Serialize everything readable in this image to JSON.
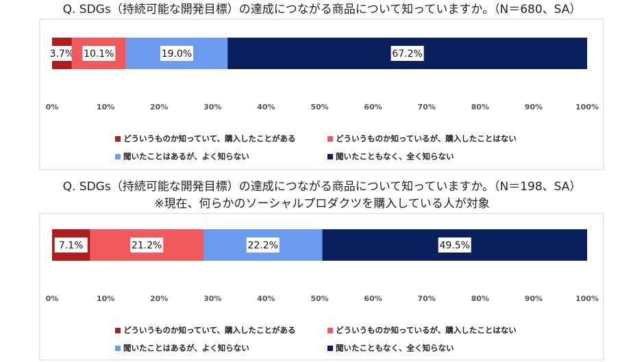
{
  "chart_data": [
    {
      "type": "bar",
      "orientation": "horizontal",
      "stacked": true,
      "title": "Q. SDGs（持続可能な開発目標）の達成につながる商品について知っていますか。（N＝680、SA）",
      "series": [
        {
          "name": "どういうものか知っていて、購入したことがある",
          "color": "#b01c1c",
          "values": [
            3.7
          ],
          "value_labels": [
            "3.7%"
          ]
        },
        {
          "name": "どういうものか知っているが、購入したことはない",
          "color": "#f0585a",
          "values": [
            10.1
          ],
          "value_labels": [
            "10.1%"
          ]
        },
        {
          "name": "聞いたことはあるが、よく知らない",
          "color": "#6a9bef",
          "values": [
            19.0
          ],
          "value_labels": [
            "19.0%"
          ]
        },
        {
          "name": "聞いたこともなく、全く知らない",
          "color": "#0b1f5e",
          "values": [
            67.2
          ],
          "value_labels": [
            "67.2%"
          ]
        }
      ],
      "xlim": [
        0,
        100
      ],
      "xticks": [
        {
          "value": 0,
          "label": "0%"
        },
        {
          "value": 10,
          "label": "10%"
        },
        {
          "value": 20,
          "label": "20%"
        },
        {
          "value": 30,
          "label": "30%"
        },
        {
          "value": 40,
          "label": "40%"
        },
        {
          "value": 50,
          "label": "50%"
        },
        {
          "value": 60,
          "label": "60%"
        },
        {
          "value": 70,
          "label": "70%"
        },
        {
          "value": 80,
          "label": "80%"
        },
        {
          "value": 90,
          "label": "90%"
        },
        {
          "value": 100,
          "label": "100%"
        }
      ],
      "grid": false,
      "legend": "bottom"
    },
    {
      "type": "bar",
      "orientation": "horizontal",
      "stacked": true,
      "title": "Q. SDGs（持続可能な開発目標）の達成につながる商品について知っていますか。（N＝198、SA）",
      "subtitle": "※現在、何らかのソーシャルプロダクツを購入している人が対象",
      "series": [
        {
          "name": "どういうものか知っていて、購入したことがある",
          "color": "#b01c1c",
          "values": [
            7.1
          ],
          "value_labels": [
            "7.1%"
          ]
        },
        {
          "name": "どういうものか知っているが、購入したことはない",
          "color": "#f0585a",
          "values": [
            21.2
          ],
          "value_labels": [
            "21.2%"
          ]
        },
        {
          "name": "聞いたことはあるが、よく知らない",
          "color": "#6a9bef",
          "values": [
            22.2
          ],
          "value_labels": [
            "22.2%"
          ]
        },
        {
          "name": "聞いたこともなく、全く知らない",
          "color": "#0b1f5e",
          "values": [
            49.5
          ],
          "value_labels": [
            "49.5%"
          ]
        }
      ],
      "xlim": [
        0,
        100
      ],
      "xticks": [
        {
          "value": 0,
          "label": "0%"
        },
        {
          "value": 10,
          "label": "10%"
        },
        {
          "value": 20,
          "label": "20%"
        },
        {
          "value": 30,
          "label": "30%"
        },
        {
          "value": 40,
          "label": "40%"
        },
        {
          "value": 50,
          "label": "50%"
        },
        {
          "value": 60,
          "label": "60%"
        },
        {
          "value": 70,
          "label": "70%"
        },
        {
          "value": 80,
          "label": "80%"
        },
        {
          "value": 90,
          "label": "90%"
        },
        {
          "value": 100,
          "label": "100%"
        }
      ],
      "grid": false,
      "legend": "bottom"
    }
  ]
}
